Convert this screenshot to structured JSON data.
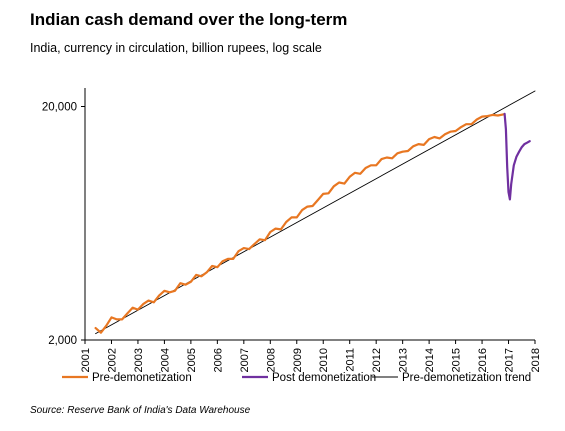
{
  "title": "Indian cash demand over the long-term",
  "subtitle": "India, currency in circulation, billion rupees, log scale",
  "source": "Source: Reserve Bank of India's Data Warehouse",
  "chart_data": {
    "type": "line",
    "y_scale": "log",
    "ylim": [
      2000,
      24000
    ],
    "xlim": [
      2001,
      2018
    ],
    "y_ticks": [
      2000,
      20000
    ],
    "y_tick_labels": [
      "2,000",
      "20,000"
    ],
    "x_tick_labels": [
      "2001",
      "2002",
      "2003",
      "2004",
      "2005",
      "2006",
      "2007",
      "2008",
      "2009",
      "2010",
      "2011",
      "2012",
      "2013",
      "2014",
      "2015",
      "2016",
      "2017",
      "2018"
    ],
    "grid": false,
    "legend_position": "bottom",
    "series": [
      {
        "name": "Pre-demonetization",
        "color": "#E87722",
        "x": [
          2001.4,
          2001.6,
          2001.8,
          2002.0,
          2002.2,
          2002.4,
          2002.6,
          2002.8,
          2003.0,
          2003.2,
          2003.4,
          2003.6,
          2003.8,
          2004.0,
          2004.2,
          2004.4,
          2004.6,
          2004.8,
          2005.0,
          2005.2,
          2005.4,
          2005.6,
          2005.8,
          2006.0,
          2006.2,
          2006.4,
          2006.6,
          2006.8,
          2007.0,
          2007.2,
          2007.4,
          2007.6,
          2007.8,
          2008.0,
          2008.2,
          2008.4,
          2008.6,
          2008.8,
          2009.0,
          2009.2,
          2009.4,
          2009.6,
          2009.8,
          2010.0,
          2010.2,
          2010.4,
          2010.6,
          2010.8,
          2011.0,
          2011.2,
          2011.4,
          2011.6,
          2011.8,
          2012.0,
          2012.2,
          2012.4,
          2012.6,
          2012.8,
          2013.0,
          2013.2,
          2013.4,
          2013.6,
          2013.8,
          2014.0,
          2014.2,
          2014.4,
          2014.6,
          2014.8,
          2015.0,
          2015.2,
          2015.4,
          2015.6,
          2015.8,
          2016.0,
          2016.2,
          2016.4,
          2016.6,
          2016.8
        ],
        "values": [
          2250,
          2150,
          2300,
          2500,
          2450,
          2450,
          2600,
          2750,
          2700,
          2850,
          2950,
          2900,
          3100,
          3250,
          3200,
          3250,
          3500,
          3450,
          3550,
          3800,
          3750,
          3900,
          4150,
          4100,
          4350,
          4450,
          4450,
          4800,
          4950,
          4900,
          5150,
          5400,
          5350,
          5800,
          6000,
          5950,
          6400,
          6700,
          6700,
          7200,
          7450,
          7500,
          7950,
          8450,
          8500,
          9100,
          9450,
          9350,
          10000,
          10400,
          10300,
          10900,
          11200,
          11200,
          11900,
          12100,
          12000,
          12600,
          12800,
          12900,
          13500,
          13800,
          13700,
          14500,
          14800,
          14600,
          15200,
          15600,
          15700,
          16300,
          16800,
          16800,
          17600,
          18100,
          18200,
          18400,
          18300,
          18500
        ]
      },
      {
        "name": "Post demonetization",
        "color": "#7030A0",
        "x": [
          2016.85,
          2016.9,
          2016.95,
          2017.0,
          2017.05,
          2017.1,
          2017.2,
          2017.3,
          2017.4,
          2017.5,
          2017.6,
          2017.7,
          2017.8
        ],
        "values": [
          18600,
          16000,
          11000,
          8600,
          8000,
          9300,
          11200,
          12200,
          12800,
          13400,
          13800,
          14000,
          14200
        ]
      },
      {
        "name": "Pre-demonetization trend",
        "color": "#000000",
        "x": [
          2001.4,
          2018.0
        ],
        "values": [
          2130,
          23300
        ]
      }
    ]
  }
}
